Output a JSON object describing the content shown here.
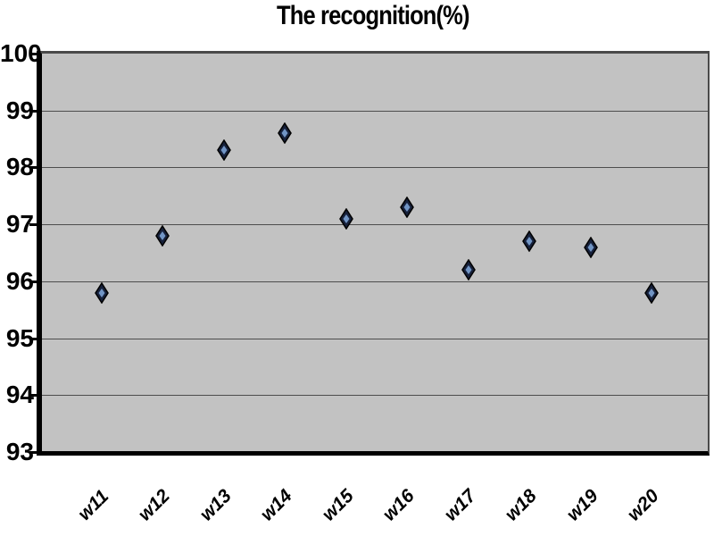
{
  "title": "The recognition(%)",
  "chart_data": {
    "type": "scatter",
    "title": "The recognition(%)",
    "xlabel": "",
    "ylabel": "",
    "categories": [
      "w11",
      "w12",
      "w13",
      "w14",
      "w15",
      "w16",
      "w17",
      "w18",
      "w19",
      "w20"
    ],
    "values": [
      95.8,
      96.8,
      98.3,
      98.6,
      97.1,
      97.3,
      96.2,
      96.7,
      96.6,
      95.8
    ],
    "ylim": [
      93,
      100
    ],
    "y_tick_labels": [
      "100",
      "99",
      "98",
      "97",
      "96",
      "95",
      "94",
      "93"
    ],
    "grid": "horizontal",
    "legend": "none",
    "marker": "diamond",
    "colors": {
      "plot_bg": "#c2c2c2",
      "gridline": "#4d4d4d",
      "axis": "#000000",
      "marker_outer": "#16203a",
      "marker_inner": "#7195c5",
      "marker_stroke": "#000000",
      "text": "#000000"
    },
    "layout": {
      "x_start_frac": 0.0898,
      "x_step_frac": 0.0918,
      "tick_step": 1
    }
  }
}
